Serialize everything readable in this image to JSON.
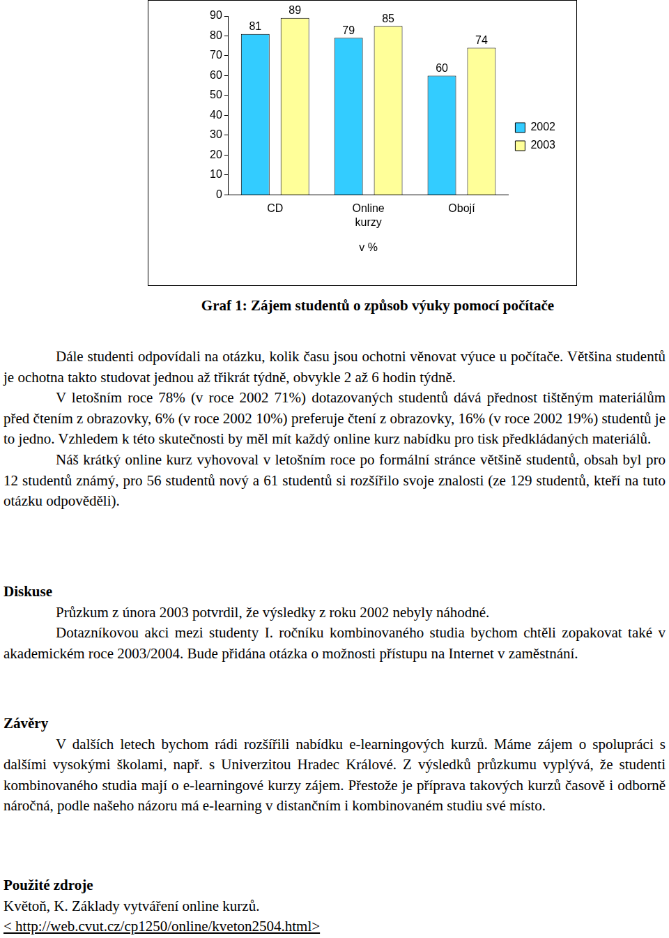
{
  "chart_data": {
    "type": "bar",
    "categories": [
      "CD",
      "Online kurzy",
      "Obojí"
    ],
    "series": [
      {
        "name": "2002",
        "color": "#33ccff",
        "values": [
          81,
          79,
          60
        ]
      },
      {
        "name": "2003",
        "color": "#ffff99",
        "values": [
          89,
          85,
          74
        ]
      }
    ],
    "x_label": "v %",
    "ylim": [
      0,
      90
    ],
    "yticks": [
      0,
      10,
      20,
      30,
      40,
      50,
      60,
      70,
      80,
      90
    ],
    "grid": false,
    "legend": "right",
    "data_labels": true
  },
  "document": {
    "caption": "Graf 1: Zájem studentů o způsob výuky pomocí počítače",
    "intro": [
      "Dále studenti odpovídali na otázku, kolik času jsou ochotni věnovat výuce u počítače. Většina studentů je ochotna takto studovat jednou až třikrát týdně, obvykle 2 až 6 hodin týdně.",
      "V letošním roce 78% (v roce 2002 71%) dotazovaných studentů dává přednost tištěným materiálům před čtením z obrazovky, 6% (v roce 2002 10%) preferuje čtení z obrazovky, 16% (v roce 2002 19%) studentů je to jedno. Vzhledem k této skutečnosti by měl mít každý online kurz nabídku pro tisk předkládaných materiálů.",
      "Náš krátký online kurz vyhovoval v letošním roce po formální stránce většině studentů, obsah byl pro 12 studentů známý, pro 56 studentů nový a 61 studentů si rozšířilo svoje znalosti (ze 129 studentů, kteří na tuto otázku odpověděli)."
    ],
    "sections": [
      {
        "heading": "Diskuse",
        "paragraphs": [
          "Průzkum z února 2003 potvrdil, že výsledky z roku 2002 nebyly náhodné.",
          "Dotazníkovou akci mezi studenty I. ročníku kombinovaného studia bychom chtěli zopakovat také v akademickém roce 2003/2004. Bude přidána otázka o možnosti přístupu na Internet v zaměstnání."
        ]
      },
      {
        "heading": "Závěry",
        "paragraphs": [
          "V dalších letech bychom rádi rozšířili nabídku e-learningových kurzů. Máme zájem o spolupráci s dalšími vysokými školami, např. s Univerzitou Hradec Králové. Z výsledků průzkumu vyplývá, že studenti kombinovaného studia mají o e-learningové kurzy zájem. Přestože je příprava takových kurzů časově i odborně náročná, podle našeho názoru má e-learning v distančním i kombinovaném studiu své místo."
        ]
      }
    ],
    "references": {
      "heading": "Použité zdroje",
      "items": [
        "Květoň, K. Základy vytváření online kurzů.",
        "< http://web.cvut.cz/cp1250/online/kveton2504.html>"
      ]
    }
  }
}
